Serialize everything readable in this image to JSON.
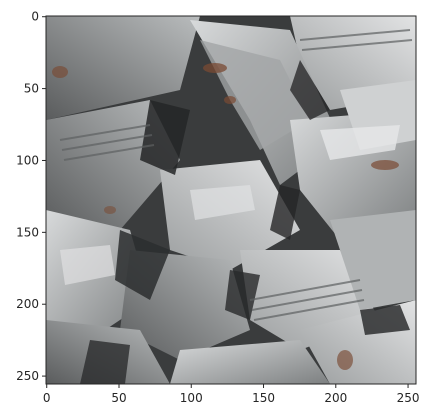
{
  "figure": {
    "image_description_icon": "scrap-metal-pile-photo",
    "x_ticks": [
      0,
      50,
      100,
      150,
      200,
      250
    ],
    "y_ticks": [
      0,
      50,
      100,
      150,
      200,
      250
    ],
    "x_tick_labels": [
      "0",
      "50",
      "100",
      "150",
      "200",
      "250"
    ],
    "y_tick_labels": [
      "0",
      "50",
      "100",
      "150",
      "200",
      "250"
    ],
    "extent": [
      0,
      256
    ],
    "colors": {
      "steel_light": "#c9cbcc",
      "steel_mid": "#8e9192",
      "steel_dark": "#4a4c4d",
      "shadow": "#252627",
      "rust": "#7a4a33",
      "axis": "#262626"
    }
  }
}
